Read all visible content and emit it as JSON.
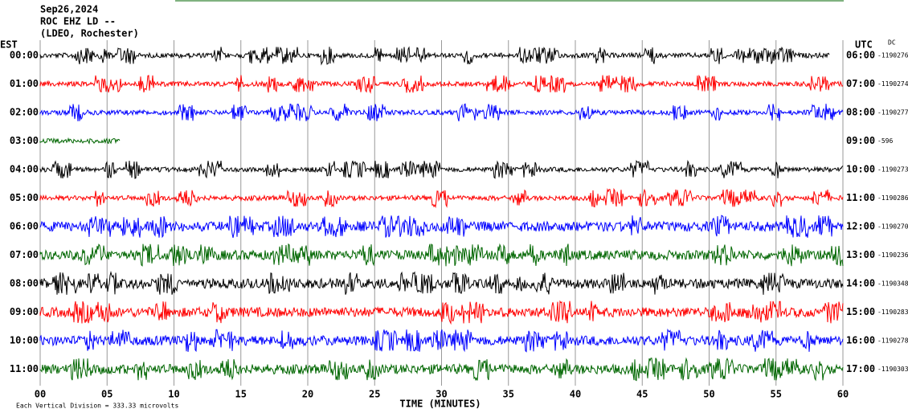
{
  "chart_data": {
    "type": "helicorder",
    "title_lines": [
      "Sep26,2024",
      "ROC EHZ LD --",
      "(LDEO, Rochester)"
    ],
    "left_axis_title": "EST",
    "right_axis_title": "UTC",
    "offset_title": "DC",
    "rows": [
      {
        "left": "00:00",
        "right": "06:00",
        "offset": "-1190276",
        "color": "#000000",
        "trace_end": 59
      },
      {
        "left": "01:00",
        "right": "07:00",
        "offset": "-1190274",
        "color": "#ff0000",
        "trace_end": 60
      },
      {
        "left": "02:00",
        "right": "08:00",
        "offset": "-1190277",
        "color": "#0000ff",
        "trace_end": 60
      },
      {
        "left": "03:00",
        "right": "09:00",
        "offset": "-596",
        "color": "#006600",
        "trace_end": 6
      },
      {
        "left": "04:00",
        "right": "10:00",
        "offset": "-1190273",
        "color": "#000000",
        "trace_end": 60
      },
      {
        "left": "05:00",
        "right": "11:00",
        "offset": "-1190286",
        "color": "#ff0000",
        "trace_end": 60
      },
      {
        "left": "06:00",
        "right": "12:00",
        "offset": "-1190270",
        "color": "#0000ff",
        "trace_end": 60
      },
      {
        "left": "07:00",
        "right": "13:00",
        "offset": "-1190236",
        "color": "#006600",
        "trace_end": 60
      },
      {
        "left": "08:00",
        "right": "14:00",
        "offset": "-1190348",
        "color": "#000000",
        "trace_end": 60
      },
      {
        "left": "09:00",
        "right": "15:00",
        "offset": "-1190283",
        "color": "#ff0000",
        "trace_end": 60
      },
      {
        "left": "10:00",
        "right": "16:00",
        "offset": "-1190278",
        "color": "#0000ff",
        "trace_end": 60
      },
      {
        "left": "11:00",
        "right": "17:00",
        "offset": "-1190303",
        "color": "#006600",
        "trace_end": 60
      }
    ],
    "xlim": [
      0,
      60
    ],
    "xticks": [
      {
        "value": 0,
        "label": "00"
      },
      {
        "value": 5,
        "label": "05"
      },
      10,
      15,
      20,
      25,
      30,
      35,
      40,
      45,
      50,
      55,
      60
    ],
    "xlabel": "TIME (MINUTES)",
    "footnote": "Each Vertical Division = 333.33 microvolts"
  }
}
